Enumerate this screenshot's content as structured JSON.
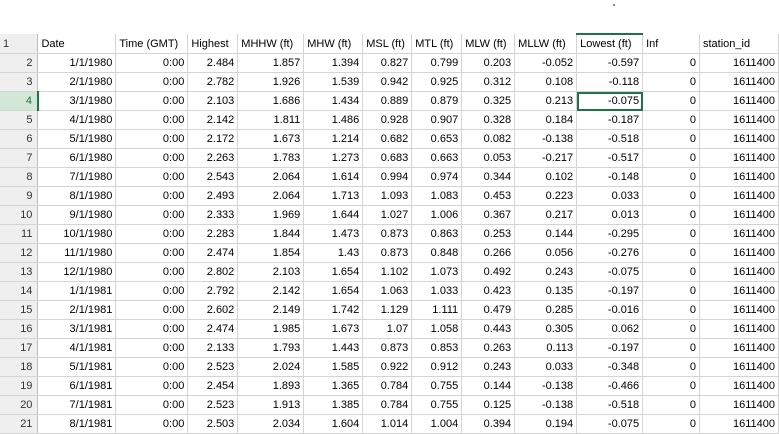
{
  "sheet": {
    "headers": [
      "Date",
      "Time (GMT)",
      "Highest",
      "MHHW (ft)",
      "MHW (ft)",
      "MSL (ft)",
      "MTL (ft)",
      "MLW (ft)",
      "MLLW (ft)",
      "Lowest (ft)",
      "Inf",
      "station_id"
    ],
    "row_numbers": [
      "1",
      "2",
      "3",
      "4",
      "5",
      "6",
      "7",
      "8",
      "9",
      "10",
      "11",
      "12",
      "13",
      "14",
      "15",
      "16",
      "17",
      "18",
      "19",
      "20",
      "21"
    ],
    "selected_row": "4",
    "active_cell": "J4",
    "rows": [
      [
        "1/1/1980",
        "0:00",
        "2.484",
        "1.857",
        "1.394",
        "0.827",
        "0.799",
        "0.203",
        "-0.052",
        "-0.597",
        "0",
        "1611400"
      ],
      [
        "2/1/1980",
        "0:00",
        "2.782",
        "1.926",
        "1.539",
        "0.942",
        "0.925",
        "0.312",
        "0.108",
        "-0.118",
        "0",
        "1611400"
      ],
      [
        "3/1/1980",
        "0:00",
        "2.103",
        "1.686",
        "1.434",
        "0.889",
        "0.879",
        "0.325",
        "0.213",
        "-0.075",
        "0",
        "1611400"
      ],
      [
        "4/1/1980",
        "0:00",
        "2.142",
        "1.811",
        "1.486",
        "0.928",
        "0.907",
        "0.328",
        "0.184",
        "-0.187",
        "0",
        "1611400"
      ],
      [
        "5/1/1980",
        "0:00",
        "2.172",
        "1.673",
        "1.214",
        "0.682",
        "0.653",
        "0.082",
        "-0.138",
        "-0.518",
        "0",
        "1611400"
      ],
      [
        "6/1/1980",
        "0:00",
        "2.263",
        "1.783",
        "1.273",
        "0.683",
        "0.663",
        "0.053",
        "-0.217",
        "-0.517",
        "0",
        "1611400"
      ],
      [
        "7/1/1980",
        "0:00",
        "2.543",
        "2.064",
        "1.614",
        "0.994",
        "0.974",
        "0.344",
        "0.102",
        "-0.148",
        "0",
        "1611400"
      ],
      [
        "8/1/1980",
        "0:00",
        "2.493",
        "2.064",
        "1.713",
        "1.093",
        "1.083",
        "0.453",
        "0.223",
        "0.033",
        "0",
        "1611400"
      ],
      [
        "9/1/1980",
        "0:00",
        "2.333",
        "1.969",
        "1.644",
        "1.027",
        "1.006",
        "0.367",
        "0.217",
        "0.013",
        "0",
        "1611400"
      ],
      [
        "10/1/1980",
        "0:00",
        "2.283",
        "1.844",
        "1.473",
        "0.873",
        "0.863",
        "0.253",
        "0.144",
        "-0.295",
        "0",
        "1611400"
      ],
      [
        "11/1/1980",
        "0:00",
        "2.474",
        "1.854",
        "1.43",
        "0.873",
        "0.848",
        "0.266",
        "0.056",
        "-0.276",
        "0",
        "1611400"
      ],
      [
        "12/1/1980",
        "0:00",
        "2.802",
        "2.103",
        "1.654",
        "1.102",
        "1.073",
        "0.492",
        "0.243",
        "-0.075",
        "0",
        "1611400"
      ],
      [
        "1/1/1981",
        "0:00",
        "2.792",
        "2.142",
        "1.654",
        "1.063",
        "1.033",
        "0.423",
        "0.135",
        "-0.197",
        "0",
        "1611400"
      ],
      [
        "2/1/1981",
        "0:00",
        "2.602",
        "2.149",
        "1.742",
        "1.129",
        "1.111",
        "0.479",
        "0.285",
        "-0.016",
        "0",
        "1611400"
      ],
      [
        "3/1/1981",
        "0:00",
        "2.474",
        "1.985",
        "1.673",
        "1.07",
        "1.058",
        "0.443",
        "0.305",
        "0.062",
        "0",
        "1611400"
      ],
      [
        "4/1/1981",
        "0:00",
        "2.133",
        "1.793",
        "1.443",
        "0.873",
        "0.853",
        "0.263",
        "0.113",
        "-0.197",
        "0",
        "1611400"
      ],
      [
        "5/1/1981",
        "0:00",
        "2.523",
        "2.024",
        "1.585",
        "0.922",
        "0.912",
        "0.243",
        "0.033",
        "-0.348",
        "0",
        "1611400"
      ],
      [
        "6/1/1981",
        "0:00",
        "2.454",
        "1.893",
        "1.365",
        "0.784",
        "0.755",
        "0.144",
        "-0.138",
        "-0.466",
        "0",
        "1611400"
      ],
      [
        "7/1/1981",
        "0:00",
        "2.523",
        "1.913",
        "1.385",
        "0.784",
        "0.755",
        "0.125",
        "-0.138",
        "-0.518",
        "0",
        "1611400"
      ],
      [
        "8/1/1981",
        "0:00",
        "2.503",
        "2.034",
        "1.604",
        "1.014",
        "1.004",
        "0.394",
        "0.194",
        "-0.075",
        "0",
        "1611400"
      ]
    ]
  },
  "colors": {
    "accent": "#217346",
    "gridline": "#d4d4d4",
    "header_bg": "#efefef",
    "selected_header_bg": "#d3e7d6"
  }
}
